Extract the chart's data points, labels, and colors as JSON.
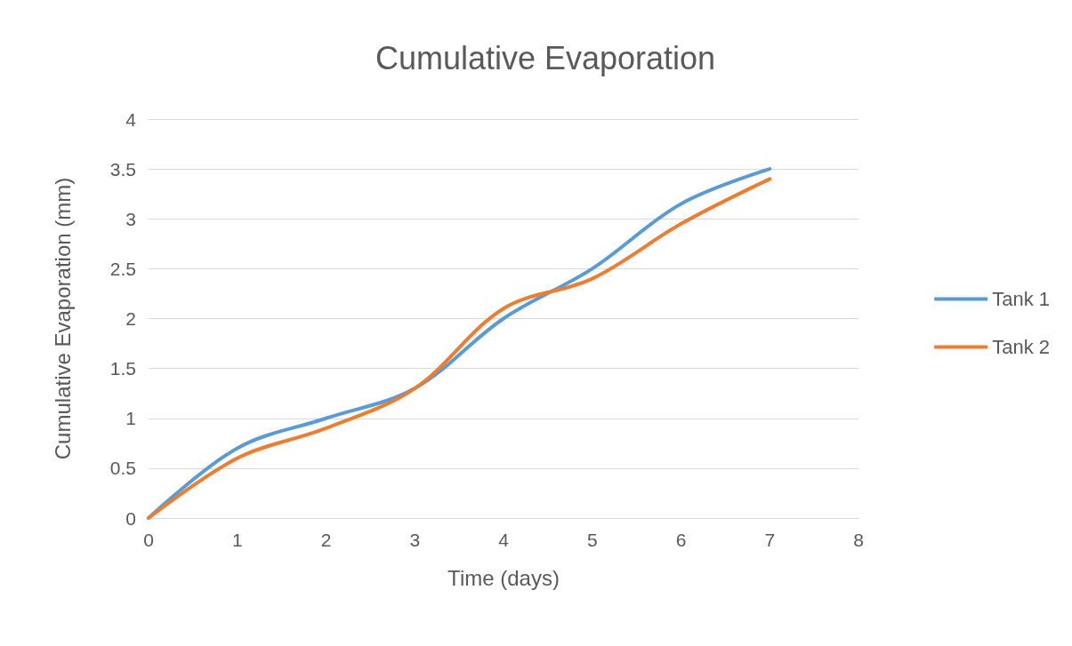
{
  "chart_data": {
    "type": "line",
    "title": "Cumulative Evaporation",
    "xlabel": "Time (days)",
    "ylabel": "Cumulative Evaporation (mm)",
    "x": [
      0,
      1,
      2,
      3,
      4,
      5,
      6,
      7
    ],
    "series": [
      {
        "name": "Tank 1",
        "color": "#5b9bd5",
        "values": [
          0,
          0.7,
          1.0,
          1.3,
          2.0,
          2.5,
          3.15,
          3.5
        ]
      },
      {
        "name": "Tank 2",
        "color": "#ed7d31",
        "values": [
          0,
          0.6,
          0.9,
          1.3,
          2.1,
          2.4,
          2.95,
          3.4
        ]
      }
    ],
    "xlim": [
      0,
      8
    ],
    "xticks": [
      0,
      1,
      2,
      3,
      4,
      5,
      6,
      7,
      8
    ],
    "ylim": [
      0,
      4
    ],
    "yticks": [
      0,
      0.5,
      1,
      1.5,
      2,
      2.5,
      3,
      3.5,
      4
    ],
    "grid": "y",
    "legend": "right",
    "marker": "none",
    "line_style": "solid"
  }
}
